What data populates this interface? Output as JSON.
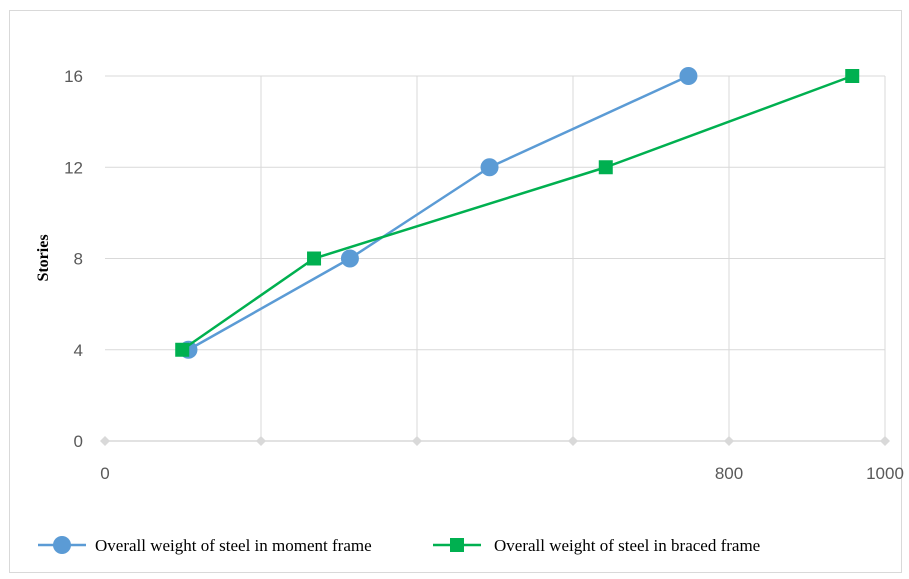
{
  "chart_data": {
    "type": "line",
    "title": "",
    "xlabel": "",
    "ylabel": "Stories",
    "xlim": [
      0,
      1000
    ],
    "ylim": [
      0,
      16
    ],
    "x_tick_labels": [
      {
        "value": 0,
        "label": "0"
      },
      {
        "value": 800,
        "label": "800"
      },
      {
        "value": 1000,
        "label": "1000"
      }
    ],
    "x_minor_ticks": [
      200,
      400,
      600
    ],
    "y_ticks": [
      0,
      4,
      8,
      12,
      16
    ],
    "grid": true,
    "legend_position": "bottom",
    "series": [
      {
        "name": "Overall weight of steel in moment frame",
        "color": "#5b9bd5",
        "marker": "circle",
        "points": [
          {
            "x": 107,
            "y": 4
          },
          {
            "x": 314,
            "y": 8
          },
          {
            "x": 493,
            "y": 12
          },
          {
            "x": 748,
            "y": 16
          }
        ]
      },
      {
        "name": "Overall weight of steel in braced frame",
        "color": "#00b050",
        "marker": "square",
        "points": [
          {
            "x": 99,
            "y": 4
          },
          {
            "x": 268,
            "y": 8
          },
          {
            "x": 642,
            "y": 12
          },
          {
            "x": 958,
            "y": 16
          }
        ]
      }
    ]
  }
}
